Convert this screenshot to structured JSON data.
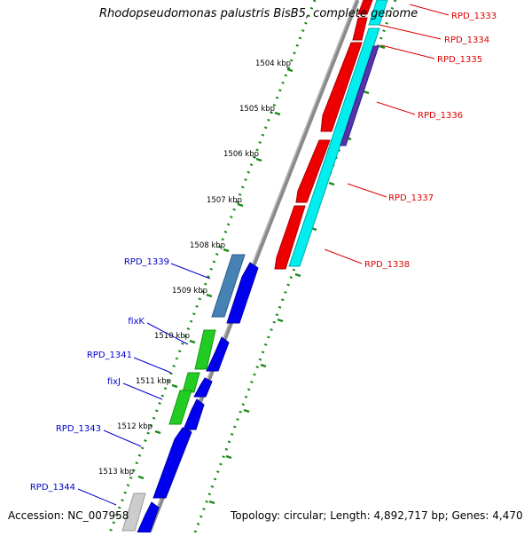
{
  "title": "Rhodopseudomonas palustris BisB5, complete genome",
  "footer": {
    "accession": "Accession: NC_007958",
    "topology": "Topology: circular; Length: 4,892,717 bp; Genes: 4,470"
  },
  "colors": {
    "backbone": "#8a8a8a",
    "ticks": "#1a8a1a",
    "forward_label": "#0000cc",
    "reverse_label": "#dd0000",
    "cds_blue": "#0000ee",
    "cds_red": "#ee0000",
    "cds_cyan": "#00eeee",
    "cds_steel": "#4682b4",
    "cds_green": "#22cc22",
    "cds_purple": "#5533aa",
    "cds_gray": "#cccccc"
  },
  "scale_labels": [
    "1504 kbp",
    "1505 kbp",
    "1506 kbp",
    "1507 kbp",
    "1508 kbp",
    "1509 kbp",
    "1510 kbp",
    "1511 kbp",
    "1512 kbp",
    "1513 kbp"
  ],
  "forward_genes": [
    {
      "label": "RPD_1339"
    },
    {
      "label": "fixK"
    },
    {
      "label": "RPD_1341"
    },
    {
      "label": "fixJ"
    },
    {
      "label": "RPD_1343"
    },
    {
      "label": "RPD_1344"
    }
  ],
  "reverse_genes": [
    {
      "label": "RPD_1333"
    },
    {
      "label": "RPD_1334"
    },
    {
      "label": "RPD_1335"
    },
    {
      "label": "RPD_1336"
    },
    {
      "label": "RPD_1337"
    },
    {
      "label": "RPD_1338"
    }
  ]
}
